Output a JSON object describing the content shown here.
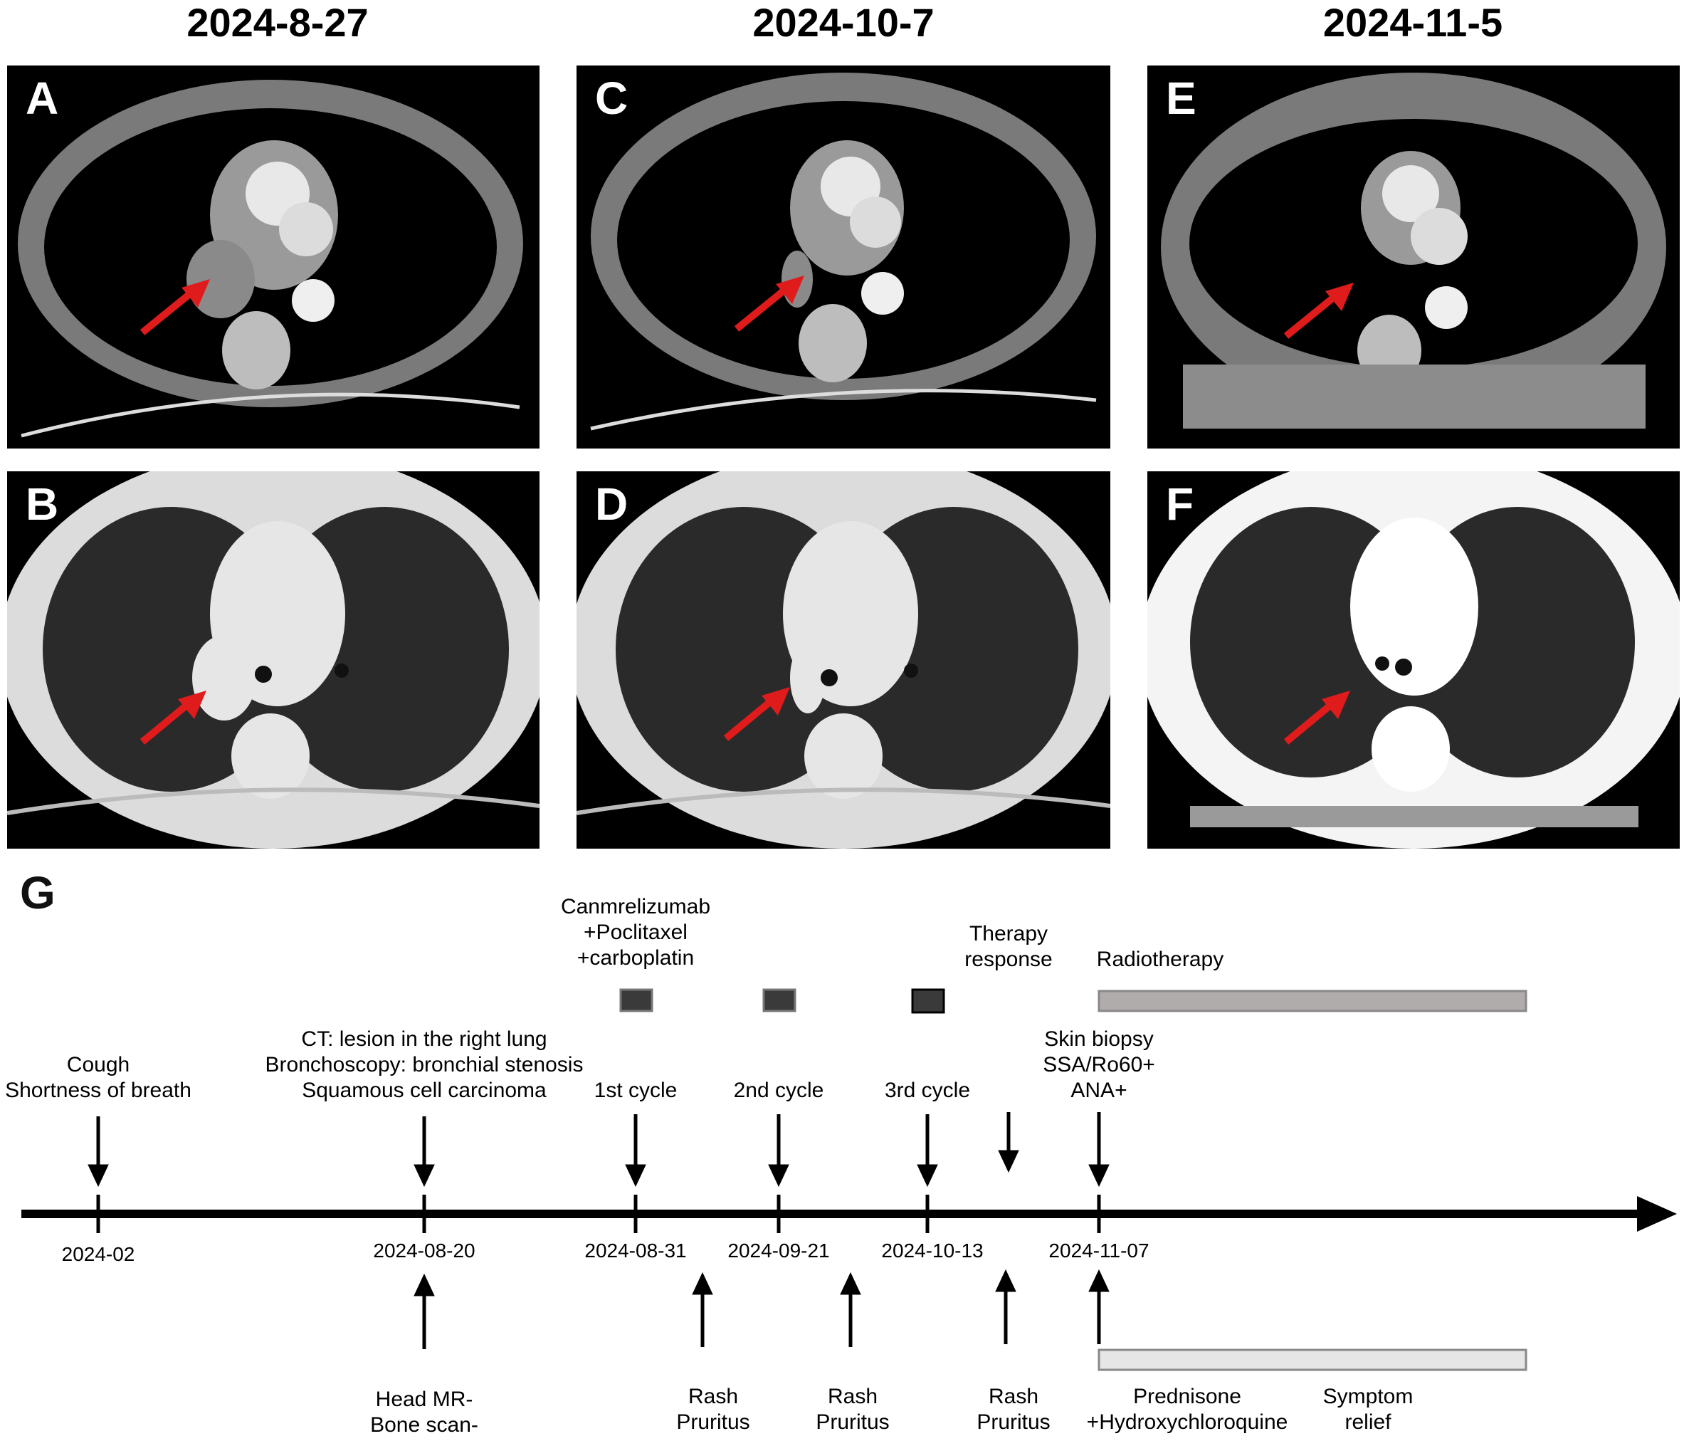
{
  "headers": {
    "col1": "2024-8-27",
    "col2": "2024-10-7",
    "col3": "2024-11-5"
  },
  "panels": {
    "A": "A",
    "B": "B",
    "C": "C",
    "D": "D",
    "E": "E",
    "F": "F"
  },
  "timeline": {
    "panel_letter": "G",
    "above_labels": {
      "cough": [
        "Cough",
        "Shortness of breath"
      ],
      "ct": [
        "CT: lesion in the right lung",
        "Bronchoscopy: bronchial stenosis",
        "Squamous cell carcinoma"
      ],
      "regimen": [
        "Canmrelizumab",
        "+Poclitaxel",
        "+carboplatin"
      ],
      "cycle1": [
        "1st cycle"
      ],
      "cycle2": [
        "2nd cycle"
      ],
      "cycle3": [
        "3rd cycle"
      ],
      "therapy_response": [
        "Therapy",
        "response"
      ],
      "radiotherapy": [
        "Radiotherapy"
      ],
      "biopsy": [
        "Skin biopsy",
        "SSA/Ro60+",
        "ANA+"
      ]
    },
    "dates": [
      "2024-02",
      "2024-08-20",
      "2024-08-31",
      "2024-09-21",
      "2024-10-13",
      "2024-11-07"
    ],
    "below_labels": {
      "head_mr": [
        "Head MR-",
        "Bone scan-"
      ],
      "rash1": [
        "Rash",
        "Pruritus"
      ],
      "rash2": [
        "Rash",
        "Pruritus"
      ],
      "rash3": [
        "Rash",
        "Pruritus"
      ],
      "prednisone": [
        "Prednisone",
        "+Hydroxychloroquine"
      ],
      "symptom": [
        "Symptom",
        "relief"
      ]
    },
    "colors": {
      "cycle_box": "#3a3a3a",
      "radiotherapy_bar": "#b0acac",
      "treatment_bar": "#e6e6e6",
      "arrow_red": "#e01b1b"
    }
  }
}
